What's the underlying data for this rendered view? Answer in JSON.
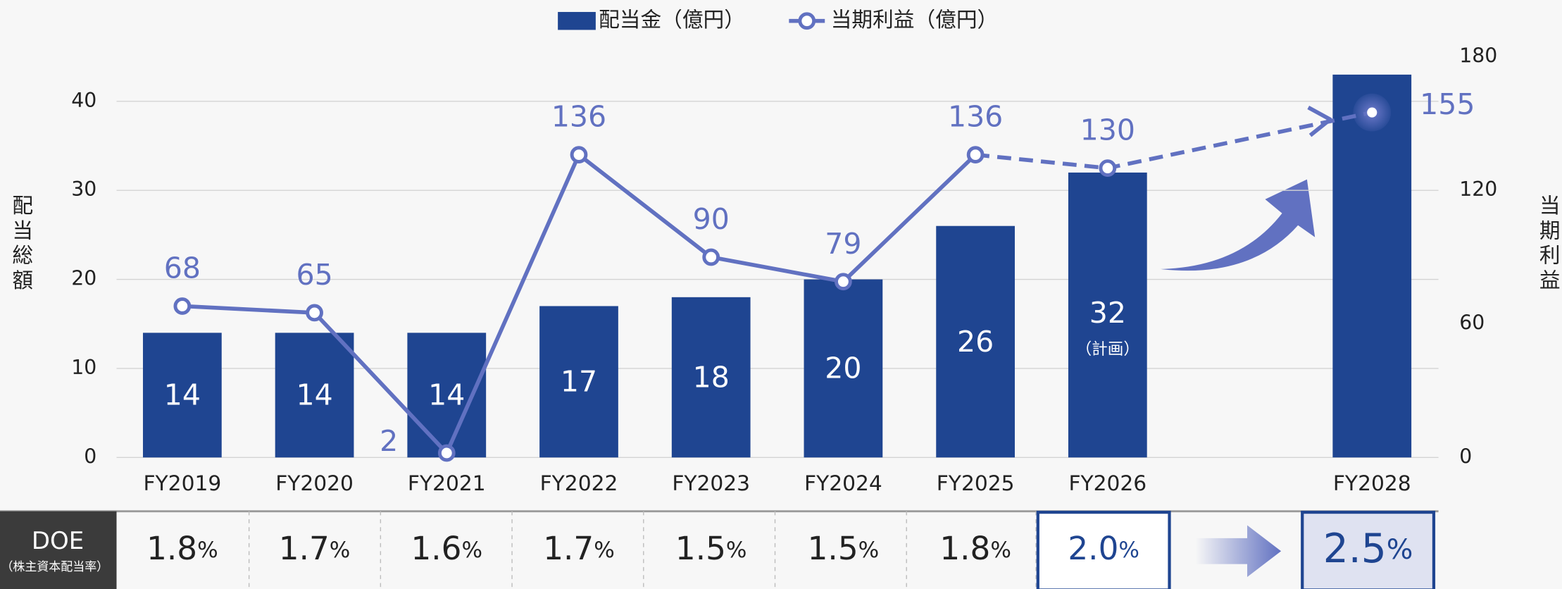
{
  "chart_data": {
    "type": "bar",
    "categories": [
      "FY2019",
      "FY2020",
      "FY2021",
      "FY2022",
      "FY2023",
      "FY2024",
      "FY2025",
      "FY2026",
      "FY2028"
    ],
    "series": [
      {
        "name": "配当金（億円）",
        "type": "bar",
        "color": "#1f4591",
        "values": [
          14,
          14,
          14,
          17,
          18,
          20,
          26,
          32,
          43
        ],
        "value_labels": [
          "14",
          "14",
          "14",
          "17",
          "18",
          "20",
          "26",
          "32",
          null
        ]
      },
      {
        "name": "当期利益（億円）",
        "type": "line",
        "axis": "y2",
        "color": "#6171c1",
        "values": [
          68,
          65,
          2,
          136,
          90,
          79,
          136,
          130,
          155
        ],
        "dashed_from": 6,
        "highlight": 8
      }
    ],
    "annotations": [
      {
        "text": "（計画）",
        "index": 7
      }
    ],
    "ylabel": "配当総額",
    "y2label": "当期利益",
    "ylim": [
      0,
      45
    ],
    "yticks": [
      0,
      10,
      20,
      30,
      40
    ],
    "y2lim": [
      0,
      180
    ],
    "y2ticks": [
      0,
      60,
      120,
      180
    ],
    "grid": true
  },
  "doe": {
    "label": "DOE",
    "sublabel": "（株主資本配当率）",
    "unit": "%",
    "values": [
      1.8,
      1.7,
      1.6,
      1.7,
      1.5,
      1.5,
      1.8,
      {
        "value": 2.0,
        "label": "2.0"
      },
      2.5
    ],
    "emphasis_from": 7
  }
}
